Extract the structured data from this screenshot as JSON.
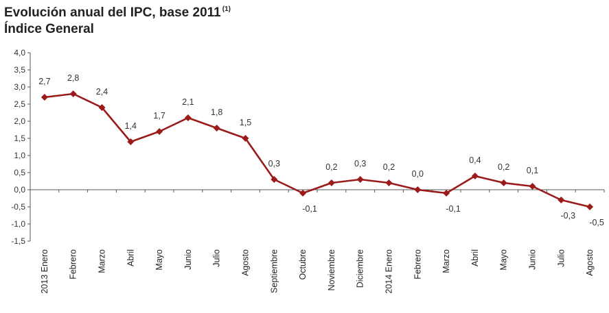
{
  "title": "Evolución anual del IPC, base 2011",
  "title_note": "(1)",
  "subtitle": "Índice General",
  "colors": {
    "series": "#9b1b1b",
    "axis": "#555555",
    "text": "#333333"
  },
  "chart_data": {
    "type": "line",
    "title": "Evolución anual del IPC, base 2011 (1) Índice General",
    "xlabel": "",
    "ylabel": "",
    "ylim": [
      -1.5,
      4.0
    ],
    "ytick_step": 0.5,
    "yticks": [
      "4,0",
      "3,5",
      "3,0",
      "2,5",
      "2,0",
      "1,5",
      "1,0",
      "0,5",
      "0,0",
      "-0,5",
      "-1,0",
      "-1,5"
    ],
    "grid": false,
    "categories": [
      "2013 Enero",
      "Febrero",
      "Marzo",
      "Abril",
      "Mayo",
      "Junio",
      "Julio",
      "Agosto",
      "Septiembre",
      "Octubre",
      "Noviembre",
      "Diciembre",
      "2014 Enero",
      "Febrero",
      "Marzo",
      "Abril",
      "Mayo",
      "Junio",
      "Julio",
      "Agosto"
    ],
    "series": [
      {
        "name": "Índice General",
        "values": [
          2.7,
          2.8,
          2.4,
          1.4,
          1.7,
          2.1,
          1.8,
          1.5,
          0.3,
          -0.1,
          0.2,
          0.3,
          0.2,
          0.0,
          -0.1,
          0.4,
          0.2,
          0.1,
          -0.3,
          -0.5
        ],
        "labels": [
          "2,7",
          "2,8",
          "2,4",
          "1,4",
          "1,7",
          "2,1",
          "1,8",
          "1,5",
          "0,3",
          "-0,1",
          "0,2",
          "0,3",
          "0,2",
          "0,0",
          "-0,1",
          "0,4",
          "0,2",
          "0,1",
          "-0,3",
          "-0,5"
        ]
      }
    ]
  }
}
